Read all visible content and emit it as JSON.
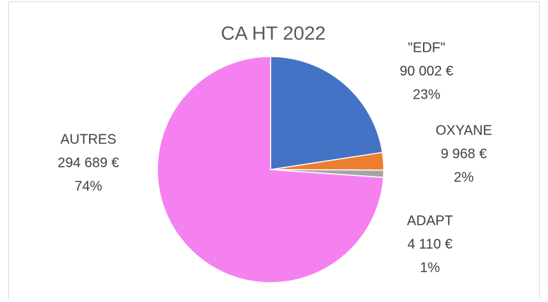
{
  "chart_data": {
    "type": "pie",
    "title": "CA HT 2022",
    "categories": [
      "\"EDF\"",
      "OXYANE",
      "ADAPT",
      "AUTRES"
    ],
    "values": [
      90002,
      9968,
      4110,
      294689
    ],
    "value_labels": [
      "90 002 €",
      "9 968 €",
      "4 110 €",
      "294 689 €"
    ],
    "percent_labels": [
      "23%",
      "2%",
      "1%",
      "74%"
    ],
    "colors": [
      "#4472c4",
      "#ed7d31",
      "#a5a5a5",
      "#f580f0"
    ]
  }
}
